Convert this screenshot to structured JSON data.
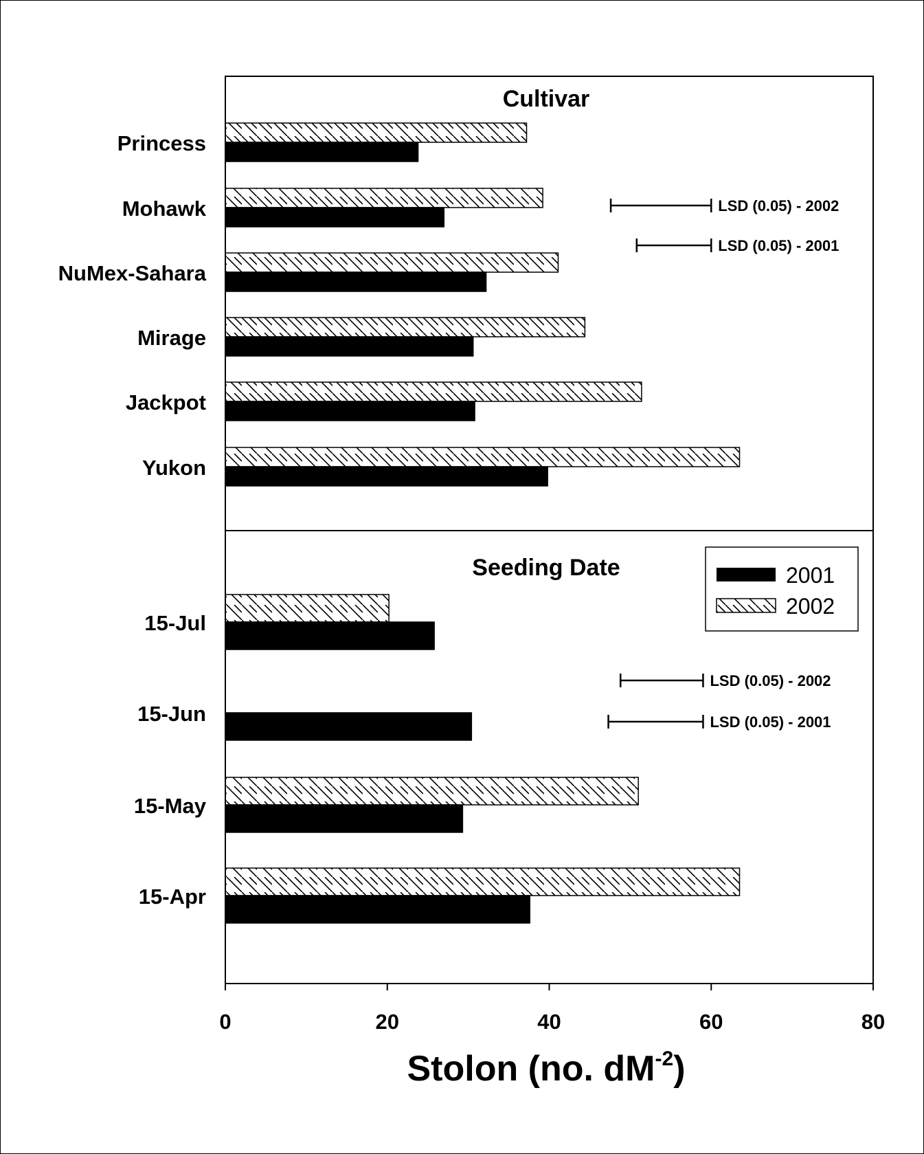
{
  "chart_data": {
    "type": "bar",
    "orientation": "horizontal",
    "xlabel": "Stolon (no. dM",
    "xlabel_sup": "-2",
    "xlabel_close": ")",
    "xlim": [
      0,
      80
    ],
    "xticks": [
      0,
      20,
      40,
      60,
      80
    ],
    "legend": {
      "position": "top-right",
      "entries": [
        {
          "name": "2001",
          "fill": "#000000",
          "pattern": "solid"
        },
        {
          "name": "2002",
          "fill": "#ffffff",
          "pattern": "hatch"
        }
      ]
    },
    "panels": [
      {
        "title": "Cultivar",
        "categories": [
          "Princess",
          "Mohawk",
          "NuMex-Sahara",
          "Mirage",
          "Jackpot",
          "Yukon"
        ],
        "series": [
          {
            "name": "2002",
            "values": [
              37.2,
              39.2,
              41.1,
              44.4,
              51.4,
              63.5
            ]
          },
          {
            "name": "2001",
            "values": [
              23.8,
              27.0,
              32.2,
              30.6,
              30.8,
              39.8
            ]
          }
        ],
        "lsd": [
          {
            "label": "LSD (0.05) - 2002",
            "from": 47.6,
            "to": 60.0
          },
          {
            "label": "LSD (0.05) - 2001",
            "from": 50.8,
            "to": 60.0
          }
        ]
      },
      {
        "title": "Seeding Date",
        "categories": [
          "15-Jul",
          "15-Jun",
          "15-May",
          "15-Apr"
        ],
        "series": [
          {
            "name": "2002",
            "values": [
              20.2,
              null,
              51.0,
              63.5
            ]
          },
          {
            "name": "2001",
            "values": [
              25.8,
              30.4,
              29.3,
              37.6
            ]
          }
        ],
        "lsd": [
          {
            "label": "LSD (0.05) - 2002",
            "from": 48.8,
            "to": 59.0
          },
          {
            "label": "LSD (0.05) - 2001",
            "from": 47.3,
            "to": 59.0
          }
        ]
      }
    ]
  }
}
